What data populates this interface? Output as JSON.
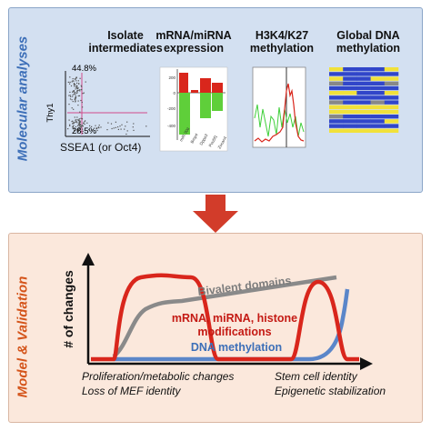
{
  "top_panel": {
    "side_label": "Molecular analyses",
    "columns": [
      {
        "title_line1": "Isolate",
        "title_line2": "intermediates"
      },
      {
        "title_line1": "mRNA/miRNA",
        "title_line2": "expression"
      },
      {
        "title_line1": "H3K4/K27",
        "title_line2": "methylation"
      },
      {
        "title_line1": "Global DNA",
        "title_line2": "methylation"
      }
    ],
    "facs": {
      "y_label": "Thy1",
      "x_label": "SSEA1 (or Oct4)",
      "pct_top": "44.8%",
      "pct_bottom": "28.5%"
    },
    "bar_ticks": [
      "200",
      "0",
      "-200",
      "-400"
    ],
    "bar_xlabels": [
      "miR-30d",
      "Bmp4",
      "Dppa3",
      "Pou5f1",
      "Zscan4"
    ]
  },
  "bottom_panel": {
    "side_label": "Model & Validation",
    "y_axis_label": "# of changes",
    "bivalent_label": "Bivalent domains",
    "red_label_line1": "mRNA, miRNA, histone",
    "red_label_line2": "modifications",
    "dna_label": "DNA methylation",
    "caption_left_1": "Proliferation/metabolic changes",
    "caption_left_2": "Loss of MEF identity",
    "caption_right_1": "Stem cell identity",
    "caption_right_2": "Epigenetic stabilization"
  },
  "colors": {
    "top_bg": "#d3e0f1",
    "bottom_bg": "#fbe8dc",
    "arrow": "#d23c2a",
    "red_curve": "#d9261c",
    "grey_curve": "#8a8a8a",
    "blue_curve": "#5b86c9",
    "dna_label": "#3d6fb8",
    "red_label": "#c41a14"
  }
}
